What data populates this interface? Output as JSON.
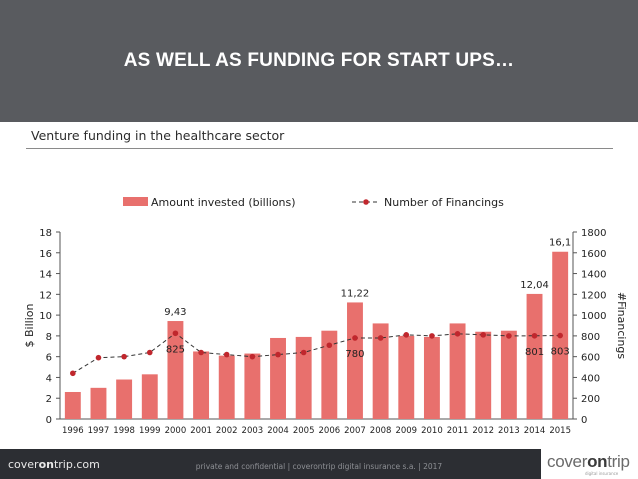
{
  "slide": {
    "title": "AS WELL AS FUNDING FOR START UPS…",
    "subtitle": "Venture funding  in the healthcare sector"
  },
  "footer": {
    "brand_prefix": "cover",
    "brand_mid": "on",
    "brand_suffix": "trip.com",
    "confidential": "private and confidential  |  coverontrip digital insurance s.a.  |  2017",
    "logo_a": "cover",
    "logo_b": "on",
    "logo_c": "trip",
    "logo_tag": "digital insurance"
  },
  "colors": {
    "bar": "#e8706d",
    "line": "#c0272d",
    "banner": "#595b5f"
  },
  "chart_data": {
    "type": "bar+line",
    "categories": [
      "1996",
      "1997",
      "1998",
      "1999",
      "2000",
      "2001",
      "2002",
      "2003",
      "2004",
      "2005",
      "2006",
      "2007",
      "2008",
      "2009",
      "2010",
      "2011",
      "2012",
      "2013",
      "2014",
      "2015"
    ],
    "series": [
      {
        "name": "Amount invested (billions)",
        "type": "bar",
        "axis": "left",
        "values": [
          2.6,
          3.0,
          3.8,
          4.3,
          9.43,
          6.5,
          6.1,
          6.3,
          7.8,
          7.9,
          8.5,
          11.22,
          9.2,
          8.0,
          7.9,
          9.2,
          8.4,
          8.5,
          12.04,
          16.1
        ]
      },
      {
        "name": "Number of Financings",
        "type": "line",
        "axis": "right",
        "values": [
          440,
          590,
          600,
          640,
          825,
          640,
          620,
          600,
          620,
          640,
          710,
          780,
          780,
          810,
          800,
          820,
          810,
          800,
          801,
          803
        ]
      }
    ],
    "bar_labels": [
      {
        "index": 4,
        "text": "9,43"
      },
      {
        "index": 11,
        "text": "11,22"
      },
      {
        "index": 18,
        "text": "12,04"
      },
      {
        "index": 19,
        "text": "16,1"
      }
    ],
    "line_labels": [
      {
        "index": 4,
        "text": "825"
      },
      {
        "index": 11,
        "text": "780"
      },
      {
        "index": 18,
        "text": "801"
      },
      {
        "index": 19,
        "text": "803"
      }
    ],
    "ylabel": "$ Billion",
    "y2label": "#Financings",
    "ylim": [
      0,
      18
    ],
    "yticks": [
      0,
      2,
      4,
      6,
      8,
      10,
      12,
      14,
      16,
      18
    ],
    "y2lim": [
      0,
      1800
    ],
    "y2ticks": [
      0,
      200,
      400,
      600,
      800,
      1000,
      1200,
      1400,
      1600,
      1800
    ],
    "legend": {
      "bar": "Amount invested (billions)",
      "line": "Number of Financings",
      "position": "top"
    }
  }
}
